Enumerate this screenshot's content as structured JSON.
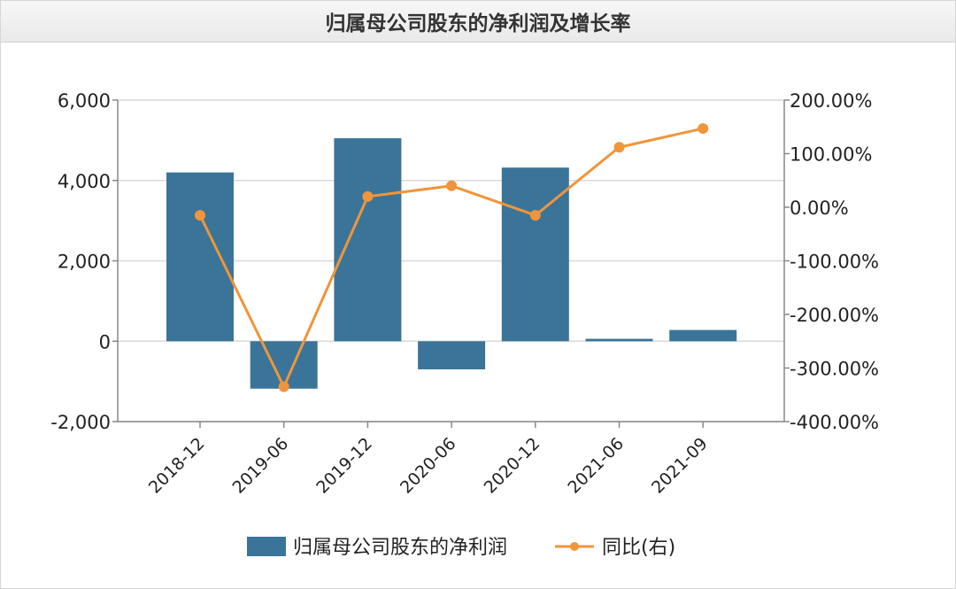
{
  "chart_data": {
    "type": "bar",
    "title": "归属母公司股东的净利润及增长率",
    "categories": [
      "2018-12",
      "2019-06",
      "2019-12",
      "2020-06",
      "2020-12",
      "2021-06",
      "2021-09"
    ],
    "series": [
      {
        "name": "归属母公司股东的净利润",
        "type": "bar",
        "axis": "left",
        "color": "#3a7499",
        "values": [
          4200,
          -1180,
          5050,
          -700,
          4320,
          60,
          280
        ]
      },
      {
        "name": "同比(右)",
        "type": "line",
        "axis": "right",
        "color": "#f0953a",
        "values": [
          -15,
          -335,
          20,
          40,
          -15,
          112,
          147
        ]
      }
    ],
    "y_left": {
      "ylim": [
        -2000,
        6000
      ],
      "ticks": [
        -2000,
        0,
        2000,
        4000,
        6000
      ],
      "tick_labels": [
        "-2,000",
        "0",
        "2,000",
        "4,000",
        "6,000"
      ]
    },
    "y_right": {
      "ylim": [
        -400,
        200
      ],
      "ticks": [
        -400,
        -300,
        -200,
        -100,
        0,
        100,
        200
      ],
      "tick_labels": [
        "-400.00%",
        "-300.00%",
        "-200.00%",
        "-100.00%",
        "0.00%",
        "100.00%",
        "200.00%"
      ]
    },
    "grid": true,
    "legend": "bottom"
  }
}
